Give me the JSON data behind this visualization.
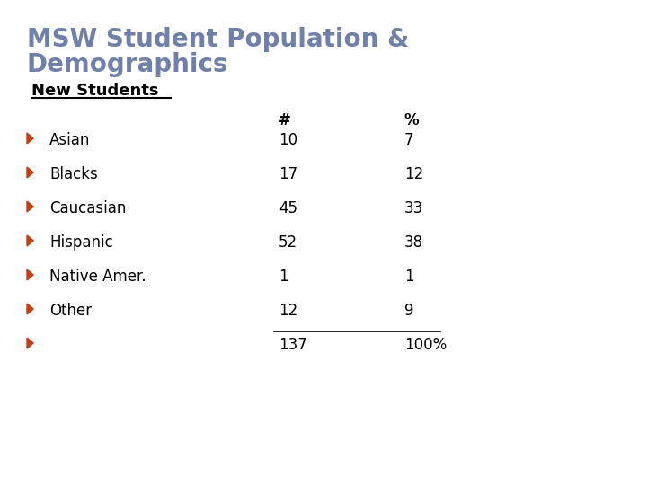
{
  "title_line1": "MSW Student Population &",
  "title_line2": "Demographics",
  "title_color": "#7080A8",
  "subtitle": "New Students",
  "subtitle_color": "#000000",
  "categories": [
    "Asian",
    "Blacks",
    "Caucasian",
    "Hispanic",
    "Native Amer.",
    "Other",
    ""
  ],
  "numbers": [
    "10",
    "17",
    "45",
    "52",
    "1",
    "12",
    "137"
  ],
  "percents": [
    "7",
    "12",
    "33",
    "38",
    "1",
    "9",
    "100%"
  ],
  "col_hash": "#",
  "col_pct": "%",
  "bullet_color": "#C04010",
  "background_color": "#FFFFFF",
  "title_fontsize": 20,
  "subtitle_fontsize": 13,
  "row_fontsize": 12,
  "header_fontsize": 12,
  "stripe_dark": "#6B1008",
  "stripe_mid": "#A02010",
  "stripe_light": "#D06050",
  "stripe_black": "#1A0A08"
}
